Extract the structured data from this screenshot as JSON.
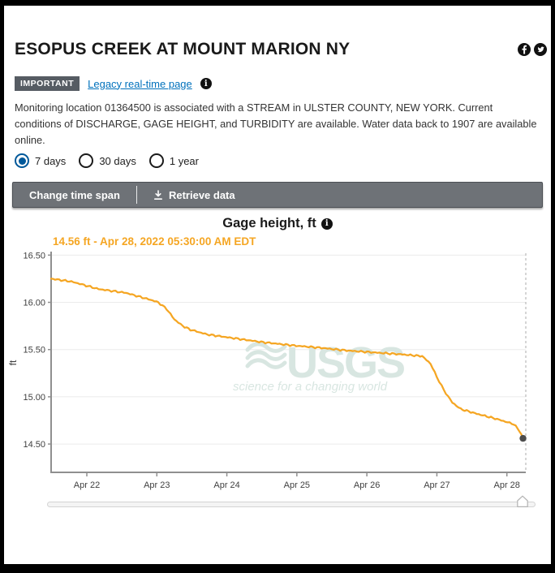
{
  "header": {
    "title": "ESOPUS CREEK AT MOUNT MARION NY",
    "badge_label": "IMPORTANT",
    "legacy_link_label": "Legacy real-time page",
    "info_glyph": "i",
    "description": "Monitoring location 01364500 is associated with a STREAM in ULSTER COUNTY, NEW YORK. Current conditions of DISCHARGE, GAGE HEIGHT, and TURBIDITY are available. Water data back to 1907 are available online.",
    "social_icons": [
      "facebook-icon",
      "twitter-icon"
    ]
  },
  "time_span": {
    "options": [
      {
        "label": "7 days",
        "selected": true
      },
      {
        "label": "30 days",
        "selected": false
      },
      {
        "label": "1 year",
        "selected": false
      }
    ]
  },
  "toolbar": {
    "change_time_span_label": "Change time span",
    "retrieve_data_label": "Retrieve data"
  },
  "chart_data": {
    "type": "line",
    "title": "Gage height, ft",
    "ylabel": "ft",
    "current_reading": "14.56 ft - Apr 28, 2022 05:30:00 AM EDT",
    "line_color": "#F5A623",
    "watermark_color": "#d8e6e1",
    "grid": true,
    "legend_position": "none",
    "y_ticks": [
      "16.50",
      "16.00",
      "15.50",
      "15.00",
      "14.50"
    ],
    "y_tick_values": [
      16.5,
      16.0,
      15.5,
      15.0,
      14.5
    ],
    "ylim": [
      14.2,
      16.52
    ],
    "x_tick_labels": [
      "Apr 22",
      "Apr 23",
      "Apr 24",
      "Apr 25",
      "Apr 26",
      "Apr 27",
      "Apr 28"
    ],
    "x_tick_days": [
      22,
      23,
      24,
      25,
      26,
      27,
      28
    ],
    "xlim_days": [
      21.49,
      28.27
    ],
    "watermark": {
      "text": "USGS",
      "tagline": "science for a changing world"
    },
    "series": [
      {
        "name": "Gage height, ft",
        "unit": "ft",
        "points": [
          [
            21.49,
            16.25
          ],
          [
            21.78,
            16.22
          ],
          [
            22.17,
            16.14
          ],
          [
            22.56,
            16.1
          ],
          [
            22.94,
            16.02
          ],
          [
            23.02,
            16.0
          ],
          [
            23.14,
            15.93
          ],
          [
            23.25,
            15.82
          ],
          [
            23.37,
            15.75
          ],
          [
            23.48,
            15.71
          ],
          [
            23.72,
            15.66
          ],
          [
            24.1,
            15.62
          ],
          [
            24.49,
            15.58
          ],
          [
            24.99,
            15.54
          ],
          [
            25.32,
            15.52
          ],
          [
            25.71,
            15.49
          ],
          [
            26.09,
            15.47
          ],
          [
            26.48,
            15.45
          ],
          [
            26.79,
            15.43
          ],
          [
            26.91,
            15.35
          ],
          [
            27.0,
            15.21
          ],
          [
            27.1,
            15.07
          ],
          [
            27.22,
            14.94
          ],
          [
            27.34,
            14.87
          ],
          [
            27.57,
            14.82
          ],
          [
            27.83,
            14.77
          ],
          [
            28.1,
            14.71
          ],
          [
            28.18,
            14.64
          ],
          [
            28.23,
            14.56
          ]
        ]
      }
    ],
    "last_point": {
      "day": 28.23,
      "value": 14.56,
      "marker_color": "#4c4c4c"
    },
    "cursor_line_day": 28.27
  }
}
